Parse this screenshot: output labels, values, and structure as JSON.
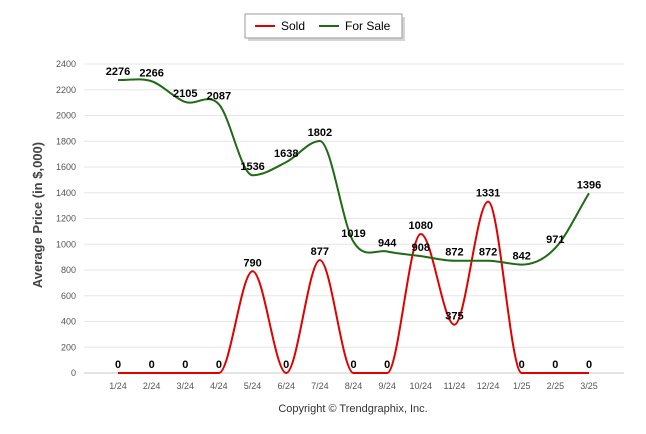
{
  "chart_data": {
    "type": "line",
    "categories": [
      "1/24",
      "2/24",
      "3/24",
      "4/24",
      "5/24",
      "6/24",
      "7/24",
      "8/24",
      "9/24",
      "10/24",
      "11/24",
      "12/24",
      "1/25",
      "2/25",
      "3/25"
    ],
    "series": [
      {
        "name": "Sold",
        "color": "#e00000",
        "values": [
          0,
          0,
          0,
          0,
          790,
          0,
          877,
          0,
          0,
          1080,
          375,
          1331,
          0,
          0,
          0
        ]
      },
      {
        "name": "For Sale",
        "color": "#1f6a14",
        "values": [
          2276,
          2266,
          2105,
          2087,
          1536,
          1638,
          1802,
          1019,
          944,
          908,
          872,
          872,
          842,
          971,
          1396
        ]
      }
    ],
    "ylabel": "Average Price (in $,000)",
    "xlabel": "",
    "ylim": [
      0,
      2400
    ],
    "yticks": [
      0,
      200,
      400,
      600,
      800,
      1000,
      1200,
      1400,
      1600,
      1800,
      2000,
      2200,
      2400
    ],
    "grid": true,
    "legend_position": "top-center"
  },
  "footer": {
    "credit": "Copyright © Trendgraphix, Inc."
  }
}
